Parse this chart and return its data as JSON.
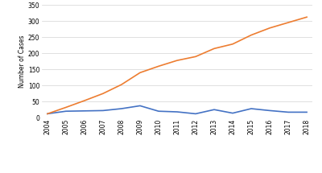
{
  "years": [
    2004,
    2005,
    2006,
    2007,
    2008,
    2009,
    2010,
    2011,
    2012,
    2013,
    2014,
    2015,
    2016,
    2017,
    2018
  ],
  "new_cases": [
    12,
    20,
    21,
    22,
    28,
    37,
    20,
    18,
    12,
    25,
    14,
    28,
    22,
    17,
    17
  ],
  "cumulative_cases": [
    12,
    32,
    53,
    75,
    103,
    140,
    160,
    178,
    190,
    215,
    229,
    257,
    279,
    296,
    313
  ],
  "new_cases_color": "#4472c4",
  "cumulative_cases_color": "#ed7d31",
  "ylabel": "Number of Cases",
  "ylim": [
    0,
    350
  ],
  "yticks": [
    0,
    50,
    100,
    150,
    200,
    250,
    300,
    350
  ],
  "background_color": "#ffffff",
  "grid_color": "#d3d3d3",
  "line_width": 1.2
}
